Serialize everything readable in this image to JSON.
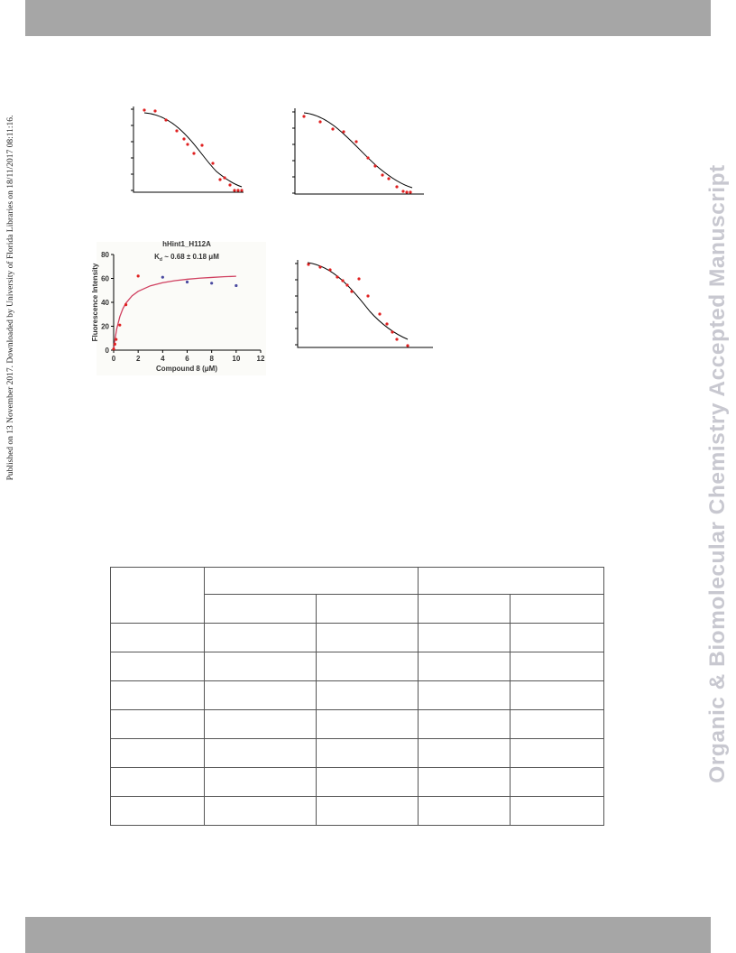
{
  "side_note": "Published on 13 November 2017. Downloaded by University of Florida Libraries on 18/11/2017 08:11:16.",
  "watermark": "Organic & Biomolecular Chemistry Accepted Manuscript",
  "chart_data": {
    "type": "scatter",
    "title": "hHint1_H112A",
    "subtitle": {
      "k": "K",
      "sub": "d",
      "rest": " ~ 0.68 ± 0.18  μM"
    },
    "x_label": "Compound 8 (μM)",
    "y_label": "Fluorescence Intensity",
    "xlim": [
      0,
      12
    ],
    "ylim": [
      0,
      80
    ],
    "xticks": [
      0,
      2,
      4,
      6,
      8,
      10,
      12
    ],
    "yticks": [
      0,
      20,
      40,
      60,
      80
    ],
    "series": [
      {
        "color": "#e02020",
        "x": [
          0,
          0.1,
          0.2,
          0.5,
          1,
          2
        ],
        "values": [
          1,
          5,
          9,
          21,
          38,
          62
        ]
      },
      {
        "color": "#4a4aa0",
        "x": [
          4,
          6,
          8,
          10
        ],
        "values": [
          61,
          57,
          56,
          54
        ]
      }
    ],
    "fit": {
      "color": "#d04060",
      "x": [
        0,
        0.1,
        0.25,
        0.5,
        0.75,
        1,
        1.5,
        2,
        3,
        4,
        5,
        6,
        7,
        8,
        9,
        10
      ],
      "values": [
        0,
        8.5,
        17.7,
        27.9,
        34.6,
        39.3,
        45.4,
        49.2,
        53.8,
        56.4,
        58.1,
        59.3,
        60.2,
        60.8,
        61.4,
        61.8
      ]
    }
  }
}
